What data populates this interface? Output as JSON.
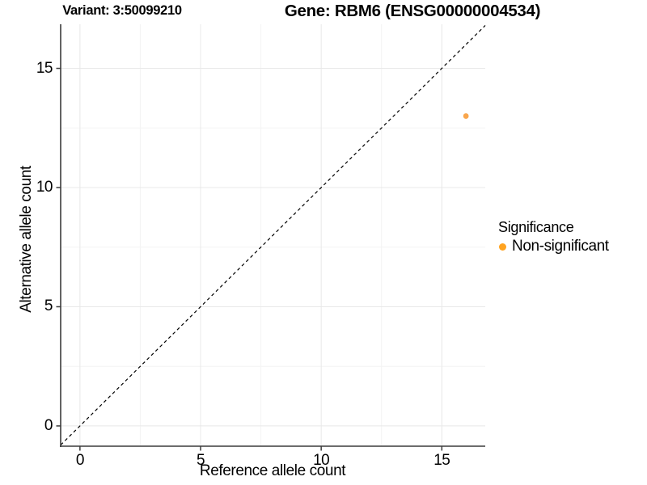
{
  "header": {
    "variant_title": "Variant: 3:50099210",
    "gene_title": "Gene: RBM6 (ENSG00000004534)"
  },
  "chart_data": {
    "type": "scatter",
    "title_left": "Variant: 3:50099210",
    "title_right": "Gene: RBM6 (ENSG00000004534)",
    "xlabel": "Reference allele count",
    "ylabel": "Alternative allele count",
    "xlim": [
      -0.8,
      16.8
    ],
    "ylim": [
      -0.85,
      16.85
    ],
    "x_ticks": [
      0,
      5,
      10,
      15
    ],
    "y_ticks": [
      0,
      5,
      10,
      15
    ],
    "x_minor_ticks": [
      2.5,
      7.5,
      12.5
    ],
    "y_minor_ticks": [
      2.5,
      7.5,
      12.5
    ],
    "grid": "major and minor gridlines, light gray on white",
    "legend_position": "right",
    "reference_line": {
      "kind": "identity y=x",
      "style": "dashed",
      "color": "#000000"
    },
    "series": [
      {
        "name": "Non-significant",
        "color": "#F9A64C",
        "points": [
          {
            "x": 16,
            "y": 13
          }
        ]
      }
    ]
  },
  "legend": {
    "title": "Significance",
    "items": [
      {
        "label": "Non-significant",
        "color": "#FFA320"
      }
    ]
  },
  "colors": {
    "background": "#ffffff",
    "axis": "#3c3c3c",
    "tick": "#3c3c3c",
    "grid_major": "#e8e8e8",
    "grid_minor": "#f4f4f4",
    "text": "#000000"
  }
}
